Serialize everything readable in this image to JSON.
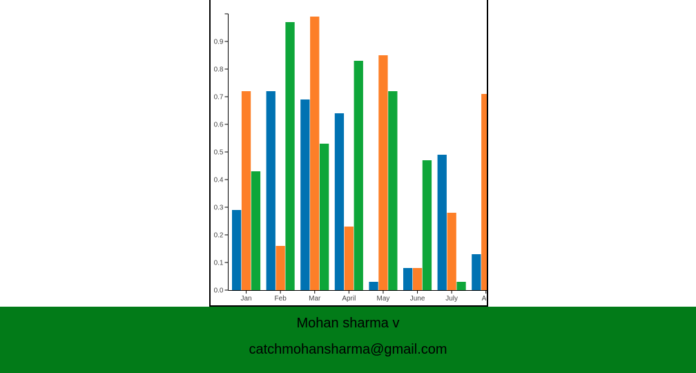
{
  "chart_data": {
    "type": "bar",
    "categories": [
      "Jan",
      "Feb",
      "Mar",
      "April",
      "May",
      "June",
      "July",
      "Au"
    ],
    "series": [
      {
        "color": "#0072b2",
        "values": [
          0.29,
          0.72,
          0.69,
          0.64,
          0.03,
          0.08,
          0.49,
          0.13
        ]
      },
      {
        "color": "#fd7f28",
        "values": [
          0.72,
          0.16,
          0.99,
          0.23,
          0.85,
          0.08,
          0.28,
          0.71
        ]
      },
      {
        "color": "#0ea639",
        "values": [
          0.43,
          0.97,
          0.53,
          0.83,
          0.72,
          0.47,
          0.03,
          null
        ]
      }
    ],
    "yticks": [
      "0.0",
      "0.1",
      "0.2",
      "0.3",
      "0.4",
      "0.5",
      "0.6",
      "0.7",
      "0.8",
      "0.9"
    ],
    "ylim": [
      0,
      1.0
    ],
    "grid": false,
    "legend": "none"
  },
  "footer": {
    "name": "Mohan sharma v",
    "email": "catchmohansharma@gmail.com",
    "background": "#027b18"
  }
}
